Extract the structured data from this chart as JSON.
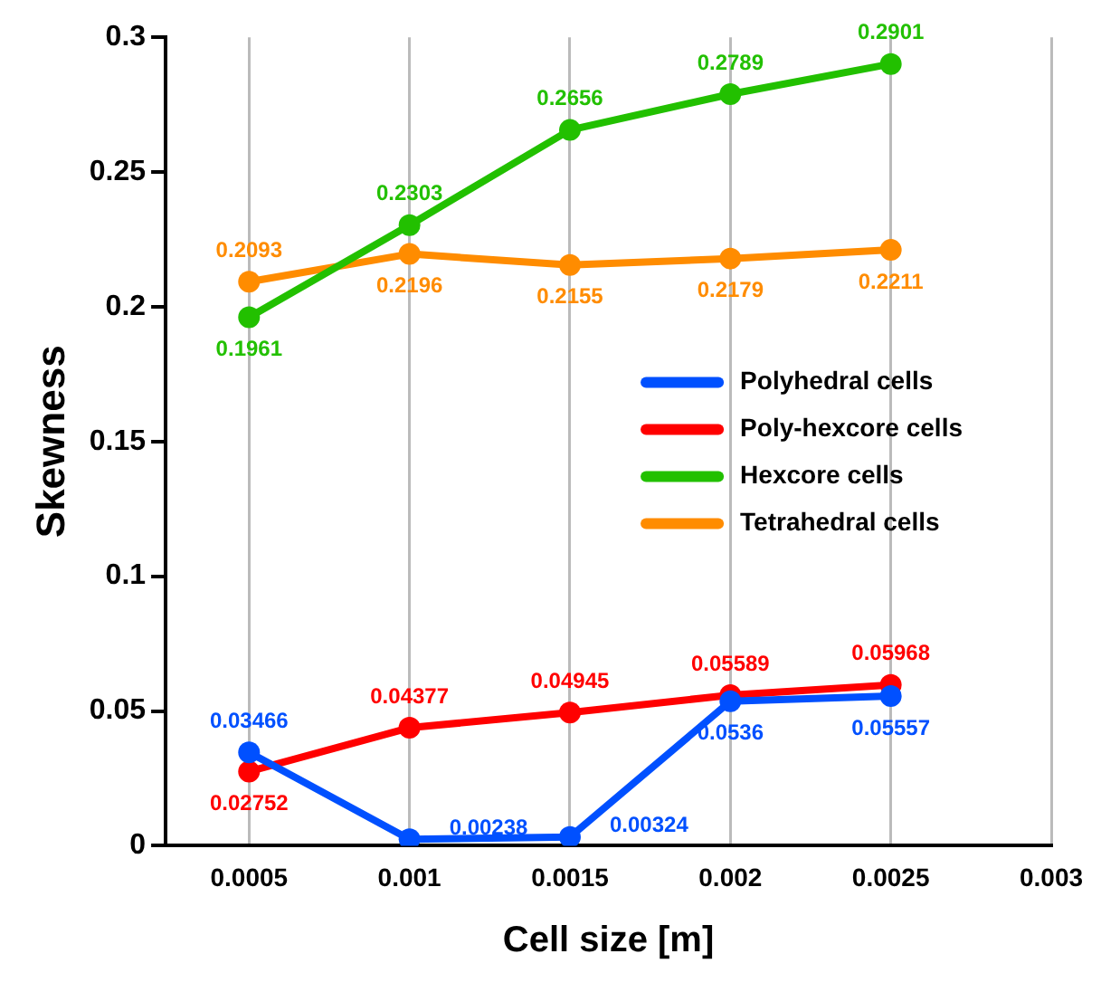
{
  "chart_data": {
    "type": "line",
    "xlabel": "Cell size [m]",
    "ylabel": "Skewness",
    "x": [
      0.0005,
      0.001,
      0.0015,
      0.002,
      0.0025
    ],
    "series": [
      {
        "name": "Polyhedral cells",
        "color": "#0050ff",
        "values": [
          0.03466,
          0.00238,
          0.00324,
          0.0536,
          0.05557
        ]
      },
      {
        "name": "Poly-hexcore cells",
        "color": "#ff0000",
        "values": [
          0.02752,
          0.04377,
          0.04945,
          0.05589,
          0.05968
        ]
      },
      {
        "name": "Hexcore cells",
        "color": "#22c000",
        "values": [
          0.1961,
          0.2303,
          0.2656,
          0.2789,
          0.2901
        ]
      },
      {
        "name": "Tetrahedral cells",
        "color": "#ff8c00",
        "values": [
          0.2093,
          0.2196,
          0.2155,
          0.2179,
          0.2211
        ]
      }
    ],
    "xlim": [
      0.00024,
      0.003
    ],
    "xticks": [
      0.0005,
      0.001,
      0.0015,
      0.002,
      0.0025,
      0.003
    ],
    "ylim": [
      0,
      0.3
    ],
    "yticks": [
      0,
      0.05,
      0.1,
      0.15,
      0.2,
      0.25,
      0.3
    ],
    "grid": "x",
    "legend": "right",
    "marker": "circle",
    "line_style": "solid",
    "data_labels": true
  }
}
